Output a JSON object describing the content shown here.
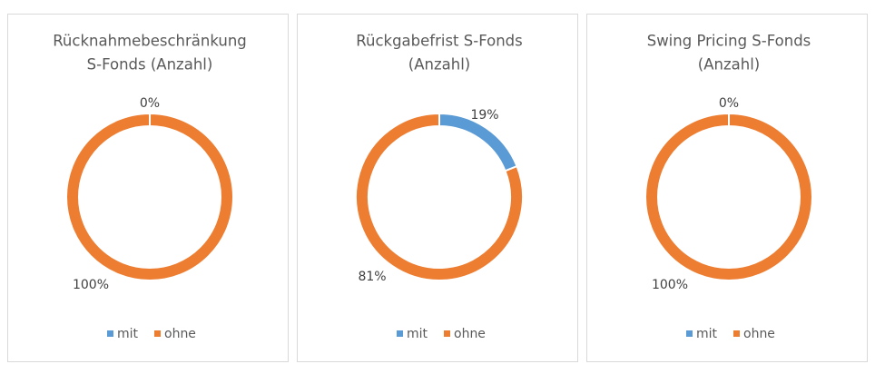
{
  "chart_data": [
    {
      "type": "pie",
      "title": [
        "Rücknahmebeschränkung",
        "S-Fonds (Anzahl)"
      ],
      "categories": [
        "mit",
        "ohne"
      ],
      "values": [
        0,
        100
      ],
      "value_labels": [
        "0%",
        "100%"
      ],
      "colors": [
        "#5b9bd5",
        "#ed7d31"
      ],
      "legend": "bottom"
    },
    {
      "type": "pie",
      "title": [
        "Rückgabefrist S-Fonds",
        "(Anzahl)"
      ],
      "categories": [
        "mit",
        "ohne"
      ],
      "values": [
        19,
        81
      ],
      "value_labels": [
        "19%",
        "81%"
      ],
      "colors": [
        "#5b9bd5",
        "#ed7d31"
      ],
      "legend": "bottom"
    },
    {
      "type": "pie",
      "title": [
        "Swing Pricing S-Fonds",
        "(Anzahl)"
      ],
      "categories": [
        "mit",
        "ohne"
      ],
      "values": [
        0,
        100
      ],
      "value_labels": [
        "0%",
        "100%"
      ],
      "colors": [
        "#5b9bd5",
        "#ed7d31"
      ],
      "legend": "bottom"
    }
  ]
}
